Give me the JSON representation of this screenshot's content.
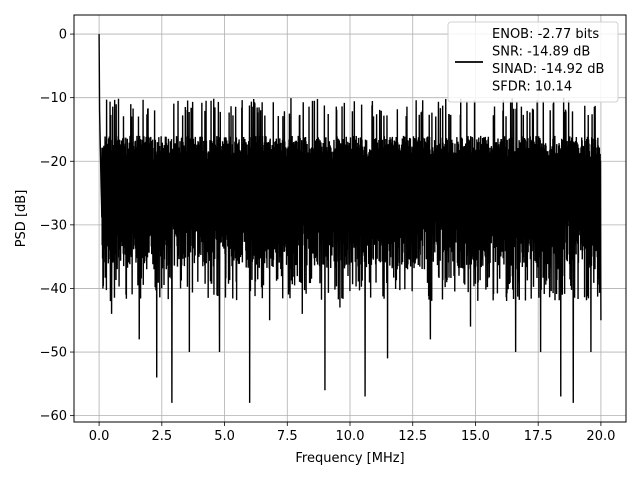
{
  "chart_data": {
    "type": "line",
    "title": "",
    "xlabel": "Frequency [MHz]",
    "ylabel": "PSD [dB]",
    "xlim": [
      -1.0,
      21.0
    ],
    "ylim": [
      -61,
      3
    ],
    "xticks": [
      0.0,
      2.5,
      5.0,
      7.5,
      10.0,
      12.5,
      15.0,
      17.5,
      20.0
    ],
    "xtick_labels": [
      "0.0",
      "2.5",
      "5.0",
      "7.5",
      "10.0",
      "12.5",
      "15.0",
      "17.5",
      "20.0"
    ],
    "yticks": [
      0,
      -10,
      -20,
      -30,
      -40,
      -50,
      -60
    ],
    "ytick_labels": [
      "0",
      "−10",
      "−20",
      "−30",
      "−40",
      "−50",
      "−60"
    ],
    "grid": true,
    "legend": {
      "placement": "top-right",
      "entries": [
        "ENOB: -2.77 bits",
        "SNR: -14.89 dB",
        "SINAD: -14.92 dB",
        "SFDR: 10.14"
      ]
    },
    "series": [
      {
        "color": "#000000",
        "noise_floor": {
          "x_range": [
            0.0,
            20.0
          ],
          "typical_high_db": -18,
          "typical_low_db": -33,
          "peak_max_db": -13
        },
        "x": [
          0.0,
          0.02,
          0.05,
          0.08,
          0.1
        ],
        "y": [
          0.0,
          -12,
          -18,
          -24,
          -27
        ],
        "notable_minima": {
          "x": [
            0.45,
            0.5,
            1.6,
            2.3,
            2.9,
            3.6,
            4.8,
            6.0,
            6.8,
            8.1,
            9.0,
            9.6,
            10.6,
            11.5,
            13.2,
            14.8,
            16.6,
            17.6,
            18.4,
            18.9,
            19.6,
            20.0
          ],
          "y": [
            -42,
            -44,
            -48,
            -54,
            -58,
            -50,
            -50,
            -58,
            -45,
            -44,
            -56,
            -43,
            -57,
            -51,
            -48,
            -46,
            -50,
            -50,
            -57,
            -58,
            -50,
            -45
          ]
        }
      }
    ]
  }
}
